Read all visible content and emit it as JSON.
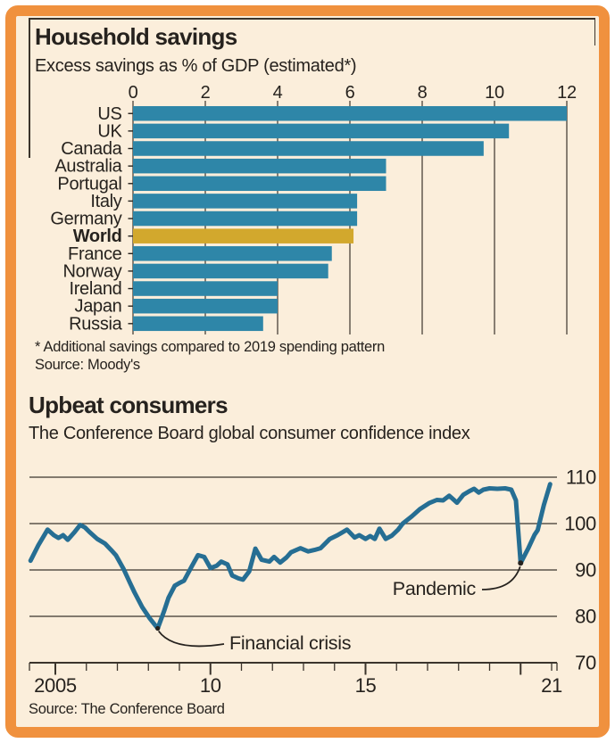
{
  "panel": {
    "background_color": "#FBEEDB",
    "border_color": "#F0913E",
    "text_color": "#26221E",
    "grid_color": "#3B342C"
  },
  "chart_data": [
    {
      "type": "bar",
      "orientation": "horizontal",
      "title": "Household savings",
      "subtitle": "Excess savings as % of GDP (estimated*)",
      "categories": [
        "US",
        "UK",
        "Canada",
        "Australia",
        "Portugal",
        "Italy",
        "Germany",
        "World",
        "France",
        "Norway",
        "Ireland",
        "Japan",
        "Russia"
      ],
      "values": [
        12.0,
        10.4,
        9.7,
        7.0,
        7.0,
        6.2,
        6.2,
        6.1,
        5.5,
        5.4,
        4.0,
        4.0,
        3.6
      ],
      "highlight_category": "World",
      "bar_color": "#2E86A8",
      "highlight_color": "#D2A82D",
      "xlim": [
        0,
        12
      ],
      "xticks": [
        0,
        2,
        4,
        6,
        8,
        10,
        12
      ],
      "grid": "vertical",
      "footnote": "* Additional savings compared to 2019 spending pattern",
      "source": "Source: Moody's"
    },
    {
      "type": "line",
      "title": "Upbeat consumers",
      "subtitle": "The Conference Board global consumer confidence index",
      "source": "Source: The Conference Board",
      "xlim": [
        2004.15,
        2021.15
      ],
      "ylim": [
        70,
        110
      ],
      "yticks": [
        70,
        80,
        90,
        100,
        110
      ],
      "xticks_major": [
        2005,
        2010,
        2015,
        2020
      ],
      "xtick_labels": [
        {
          "x": 2005,
          "label": "2005"
        },
        {
          "x": 2010,
          "label": "10"
        },
        {
          "x": 2015,
          "label": "15"
        },
        {
          "x": 2021,
          "label": "21"
        }
      ],
      "grid": "horizontal",
      "legend": "none",
      "annotations": [
        {
          "id": "financial-crisis",
          "label": "Financial crisis",
          "x": 2008.3,
          "y": 77.4
        },
        {
          "id": "pandemic",
          "label": "Pandemic",
          "x": 2020.0,
          "y": 91.5
        }
      ],
      "series": [
        {
          "name": "Global consumer confidence index",
          "color": "#266E93",
          "points": [
            [
              2004.2,
              92.0
            ],
            [
              2004.45,
              95.3
            ],
            [
              2004.75,
              98.7
            ],
            [
              2004.95,
              97.5
            ],
            [
              2005.1,
              96.9
            ],
            [
              2005.25,
              97.5
            ],
            [
              2005.4,
              96.5
            ],
            [
              2005.6,
              98.0
            ],
            [
              2005.8,
              99.7
            ],
            [
              2005.95,
              99.2
            ],
            [
              2006.1,
              98.2
            ],
            [
              2006.35,
              96.7
            ],
            [
              2006.6,
              95.7
            ],
            [
              2006.8,
              94.3
            ],
            [
              2006.95,
              93.2
            ],
            [
              2007.2,
              90.2
            ],
            [
              2007.4,
              87.3
            ],
            [
              2007.55,
              85.2
            ],
            [
              2007.8,
              82.0
            ],
            [
              2008.05,
              79.5
            ],
            [
              2008.3,
              77.4
            ],
            [
              2008.5,
              81.0
            ],
            [
              2008.65,
              84.0
            ],
            [
              2008.85,
              86.6
            ],
            [
              2009.0,
              87.2
            ],
            [
              2009.15,
              87.7
            ],
            [
              2009.4,
              90.8
            ],
            [
              2009.6,
              93.2
            ],
            [
              2009.8,
              92.8
            ],
            [
              2010.0,
              90.4
            ],
            [
              2010.2,
              90.9
            ],
            [
              2010.35,
              91.8
            ],
            [
              2010.55,
              91.2
            ],
            [
              2010.7,
              88.8
            ],
            [
              2010.9,
              88.2
            ],
            [
              2011.05,
              87.9
            ],
            [
              2011.25,
              89.7
            ],
            [
              2011.45,
              94.6
            ],
            [
              2011.65,
              92.2
            ],
            [
              2011.9,
              91.8
            ],
            [
              2012.05,
              92.8
            ],
            [
              2012.25,
              91.6
            ],
            [
              2012.45,
              92.7
            ],
            [
              2012.6,
              93.8
            ],
            [
              2012.9,
              94.7
            ],
            [
              2013.15,
              94.0
            ],
            [
              2013.35,
              94.3
            ],
            [
              2013.55,
              94.7
            ],
            [
              2013.85,
              96.7
            ],
            [
              2014.1,
              97.5
            ],
            [
              2014.4,
              98.7
            ],
            [
              2014.65,
              97.0
            ],
            [
              2014.8,
              97.5
            ],
            [
              2015.0,
              96.7
            ],
            [
              2015.15,
              97.3
            ],
            [
              2015.3,
              96.7
            ],
            [
              2015.45,
              98.9
            ],
            [
              2015.65,
              96.7
            ],
            [
              2015.85,
              97.4
            ],
            [
              2016.05,
              98.7
            ],
            [
              2016.2,
              100.0
            ],
            [
              2016.5,
              101.6
            ],
            [
              2016.75,
              103.1
            ],
            [
              2017.05,
              104.4
            ],
            [
              2017.3,
              105.1
            ],
            [
              2017.5,
              105.0
            ],
            [
              2017.7,
              106.0
            ],
            [
              2017.95,
              104.5
            ],
            [
              2018.15,
              106.2
            ],
            [
              2018.35,
              107.0
            ],
            [
              2018.5,
              107.5
            ],
            [
              2018.65,
              106.7
            ],
            [
              2018.8,
              107.3
            ],
            [
              2019.0,
              107.6
            ],
            [
              2019.25,
              107.5
            ],
            [
              2019.5,
              107.6
            ],
            [
              2019.7,
              107.3
            ],
            [
              2019.85,
              105.0
            ],
            [
              2020.0,
              91.5
            ],
            [
              2020.25,
              94.7
            ],
            [
              2020.45,
              97.6
            ],
            [
              2020.55,
              98.6
            ],
            [
              2020.75,
              104.0
            ],
            [
              2020.95,
              108.5
            ]
          ]
        }
      ]
    }
  ]
}
